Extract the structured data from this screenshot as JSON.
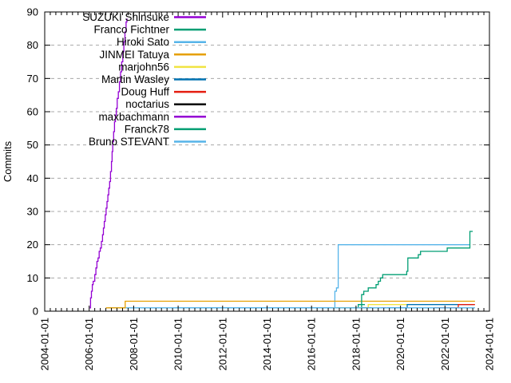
{
  "window": {
    "background": "#ffffff"
  },
  "chart_data": {
    "type": "line",
    "line_style": "steps",
    "title": "",
    "xlabel": "",
    "ylabel": "Commits",
    "xlim_years": [
      2004,
      2024
    ],
    "ylim": [
      0,
      90
    ],
    "y_ticks": [
      0,
      10,
      20,
      30,
      40,
      50,
      60,
      70,
      80,
      90
    ],
    "x_tick_years": [
      2004,
      2006,
      2008,
      2010,
      2012,
      2014,
      2016,
      2018,
      2020,
      2022,
      2024
    ],
    "x_tick_labels": [
      "2004-01-01",
      "2006-01-01",
      "2008-01-01",
      "2010-01-01",
      "2012-01-01",
      "2014-01-01",
      "2016-01-01",
      "2018-01-01",
      "2020-01-01",
      "2022-01-01",
      "2024-01-01"
    ],
    "x_minor_tick_interval_years": 0.25,
    "grid": {
      "horizontal": true,
      "vertical": false,
      "style": "dashed",
      "color": "#a8a8a8"
    },
    "axis_color": "#000000",
    "legend_position": "top-left",
    "series": [
      {
        "name": "SUZUKI Shinsuke",
        "color": "#9400d3",
        "points": [
          [
            2006.02,
            1
          ],
          [
            2006.06,
            4
          ],
          [
            2006.1,
            6
          ],
          [
            2006.14,
            8
          ],
          [
            2006.18,
            9
          ],
          [
            2006.25,
            11
          ],
          [
            2006.3,
            13
          ],
          [
            2006.35,
            15
          ],
          [
            2006.4,
            16
          ],
          [
            2006.45,
            18
          ],
          [
            2006.5,
            19
          ],
          [
            2006.55,
            21
          ],
          [
            2006.6,
            23
          ],
          [
            2006.64,
            25
          ],
          [
            2006.68,
            27
          ],
          [
            2006.72,
            29
          ],
          [
            2006.76,
            31
          ],
          [
            2006.8,
            33
          ],
          [
            2006.84,
            35
          ],
          [
            2006.88,
            37
          ],
          [
            2006.92,
            39
          ],
          [
            2006.96,
            42
          ],
          [
            2007.0,
            45
          ],
          [
            2007.03,
            48
          ],
          [
            2007.06,
            51
          ],
          [
            2007.1,
            54
          ],
          [
            2007.14,
            57
          ],
          [
            2007.18,
            59
          ],
          [
            2007.22,
            61
          ],
          [
            2007.26,
            64
          ],
          [
            2007.31,
            66
          ],
          [
            2007.36,
            69
          ],
          [
            2007.41,
            72
          ],
          [
            2007.46,
            75
          ],
          [
            2007.51,
            78
          ],
          [
            2007.56,
            81
          ],
          [
            2007.61,
            84
          ],
          [
            2007.66,
            87
          ],
          [
            2007.7,
            88
          ]
        ]
      },
      {
        "name": "Franco Fichtner",
        "color": "#009e73",
        "points": [
          [
            2017.15,
            1
          ],
          [
            2018.1,
            2
          ],
          [
            2018.4,
            2
          ]
        ]
      },
      {
        "name": "Hiroki Sato",
        "color": "#56b4e9",
        "points": [
          [
            2006.85,
            1
          ],
          [
            2017.05,
            6
          ],
          [
            2017.12,
            7
          ],
          [
            2017.2,
            20
          ],
          [
            2023.1,
            20
          ]
        ]
      },
      {
        "name": "JINMEI Tatuya",
        "color": "#e69f00",
        "points": [
          [
            2006.75,
            1
          ],
          [
            2007.62,
            3
          ],
          [
            2023.35,
            3
          ]
        ]
      },
      {
        "name": "marjohn56",
        "color": "#f0e442",
        "points": [
          [
            2016.9,
            1
          ],
          [
            2018.55,
            2
          ],
          [
            2020.35,
            2
          ]
        ]
      },
      {
        "name": "Martin Wasley",
        "color": "#0072b2",
        "points": [
          [
            2019.4,
            1
          ],
          [
            2020.3,
            2
          ],
          [
            2023.3,
            2
          ]
        ]
      },
      {
        "name": "Doug Huff",
        "color": "#e51e10",
        "points": [
          [
            2021.5,
            1
          ],
          [
            2022.6,
            2
          ],
          [
            2023.35,
            2
          ]
        ]
      },
      {
        "name": "noctarius",
        "color": "#000000",
        "points": [
          [
            2018.25,
            1
          ],
          [
            2018.7,
            1
          ]
        ]
      },
      {
        "name": "maxbachmann",
        "color": "#9400d3",
        "points": [
          [
            2019.15,
            1
          ],
          [
            2019.35,
            1
          ]
        ]
      },
      {
        "name": "Franck78",
        "color": "#009e73",
        "points": [
          [
            2018.24,
            1
          ],
          [
            2018.25,
            5
          ],
          [
            2018.35,
            6
          ],
          [
            2018.55,
            7
          ],
          [
            2018.9,
            8
          ],
          [
            2019.0,
            9
          ],
          [
            2019.1,
            10
          ],
          [
            2019.2,
            11
          ],
          [
            2020.28,
            12
          ],
          [
            2020.33,
            16
          ],
          [
            2020.8,
            17
          ],
          [
            2020.9,
            18
          ],
          [
            2022.1,
            19
          ],
          [
            2023.12,
            24
          ],
          [
            2023.25,
            24
          ]
        ]
      },
      {
        "name": "Bruno STEVANT",
        "color": "#56b4e9",
        "points": [
          [
            2009.9,
            1
          ],
          [
            2023.35,
            1
          ]
        ]
      }
    ]
  }
}
